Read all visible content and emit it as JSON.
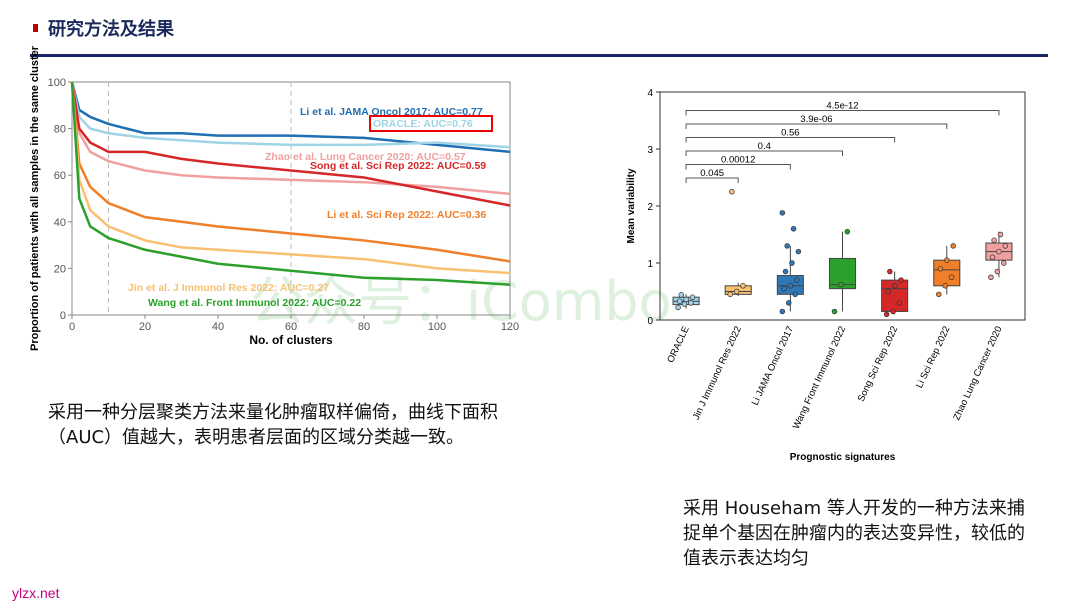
{
  "header": {
    "title": "研究方法及结果"
  },
  "chart_data": [
    {
      "type": "line",
      "xlabel": "No. of clusters",
      "ylabel": "Proportion of patients with all samples in the same cluster",
      "xlim": [
        0,
        120
      ],
      "ylim": [
        0,
        100
      ],
      "xticks": [
        0,
        20,
        40,
        60,
        80,
        100,
        120
      ],
      "yticks": [
        0,
        20,
        40,
        60,
        80,
        100
      ],
      "vlines": [
        10,
        60
      ],
      "x": [
        0,
        2,
        5,
        10,
        20,
        30,
        40,
        60,
        80,
        100,
        120
      ],
      "series": [
        {
          "name": "Li et al. JAMA Oncol 2017: AUC=0.77",
          "color": "#1f6fb4",
          "values": [
            100,
            88,
            85,
            82,
            78,
            78,
            77,
            77,
            76,
            73,
            70
          ]
        },
        {
          "name": "ORACLE: AUC=0.76",
          "color": "#9fd3e6",
          "values": [
            100,
            85,
            80,
            78,
            76,
            75,
            74,
            73,
            73,
            74,
            72
          ]
        },
        {
          "name": "Zhao et al. Lung Cancer 2020: AUC=0.57",
          "color": "#f0a0a0",
          "values": [
            100,
            78,
            70,
            66,
            62,
            60,
            59,
            58,
            57,
            55,
            52
          ]
        },
        {
          "name": "Song et al. Sci Rep 2022: AUC=0.59",
          "color": "#d62728",
          "values": [
            100,
            80,
            74,
            70,
            70,
            67,
            65,
            62,
            59,
            53,
            47
          ]
        },
        {
          "name": "Li et al. Sci Rep 2022: AUC=0.36",
          "color": "#f07f2a",
          "values": [
            100,
            65,
            55,
            48,
            42,
            40,
            38,
            35,
            32,
            28,
            23
          ]
        },
        {
          "name": "Jin et al. J Immunol Res 2022: AUC=0.27",
          "color": "#f8c070",
          "values": [
            100,
            58,
            45,
            38,
            32,
            29,
            28,
            26,
            24,
            20,
            18
          ]
        },
        {
          "name": "Wang et al. Front Immunol 2022: AUC=0.22",
          "color": "#2ca02c",
          "values": [
            100,
            50,
            38,
            33,
            28,
            25,
            22,
            19,
            16,
            15,
            13
          ]
        }
      ]
    },
    {
      "type": "box",
      "xlabel": "Prognostic signatures",
      "ylabel": "Mean variability",
      "ylim": [
        0,
        4
      ],
      "yticks": [
        0,
        1,
        2,
        3,
        4
      ],
      "categories": [
        "ORACLE",
        "Jin J Immunol Res 2022",
        "Li JAMA Oncol 2017",
        "Wang Front Immunol 2022",
        "Song Sci Rep 2022",
        "Li Sci Rep 2022",
        "Zhao Lung Cancer 2020"
      ],
      "colors": [
        "#9fd3e6",
        "#f8c070",
        "#2f78b8",
        "#2ca02c",
        "#d62728",
        "#f07f2a",
        "#f0a0a0"
      ],
      "boxes": [
        {
          "min": 0.2,
          "q1": 0.27,
          "median": 0.33,
          "q3": 0.4,
          "max": 0.45
        },
        {
          "min": 0.42,
          "q1": 0.45,
          "median": 0.5,
          "q3": 0.6,
          "max": 0.65
        },
        {
          "min": 0.15,
          "q1": 0.45,
          "median": 0.6,
          "q3": 0.78,
          "max": 1.3
        },
        {
          "min": 0.15,
          "q1": 0.55,
          "median": 0.62,
          "q3": 1.08,
          "max": 1.55
        },
        {
          "min": 0.1,
          "q1": 0.15,
          "median": 0.55,
          "q3": 0.7,
          "max": 0.85
        },
        {
          "min": 0.45,
          "q1": 0.6,
          "median": 0.88,
          "q3": 1.05,
          "max": 1.3
        },
        {
          "min": 0.75,
          "q1": 1.05,
          "median": 1.2,
          "q3": 1.35,
          "max": 1.55
        }
      ],
      "points": [
        [
          0.22,
          0.28,
          0.3,
          0.33,
          0.36,
          0.4,
          0.44
        ],
        [
          0.45,
          0.5,
          0.6,
          2.25
        ],
        [
          0.15,
          0.3,
          0.45,
          0.55,
          0.6,
          0.7,
          0.85,
          1.0,
          1.2,
          1.3,
          1.6,
          1.88
        ],
        [
          0.15,
          0.62,
          1.55
        ],
        [
          0.1,
          0.15,
          0.3,
          0.5,
          0.6,
          0.7,
          0.85
        ],
        [
          0.45,
          0.6,
          0.75,
          0.9,
          1.05,
          1.3
        ],
        [
          0.75,
          0.85,
          1.0,
          1.1,
          1.2,
          1.3,
          1.4,
          1.5
        ]
      ],
      "comparisons": [
        "0.045",
        "0.00012",
        "0.4",
        "0.56",
        "3.9e-06",
        "4.5e-12"
      ]
    }
  ],
  "captions": [
    "采用一种分层聚类方法来量化肿瘤取样偏倚，曲线下面积（AUC）值越大，表明患者层面的区域分类越一致。",
    "采用 Househam 等人开发的一种方法来捕捉单个基因在肿瘤内的表达变异性，较低的值表示表达均匀"
  ],
  "watermark": "公众号：iCombo",
  "footer": "ylzx.net"
}
